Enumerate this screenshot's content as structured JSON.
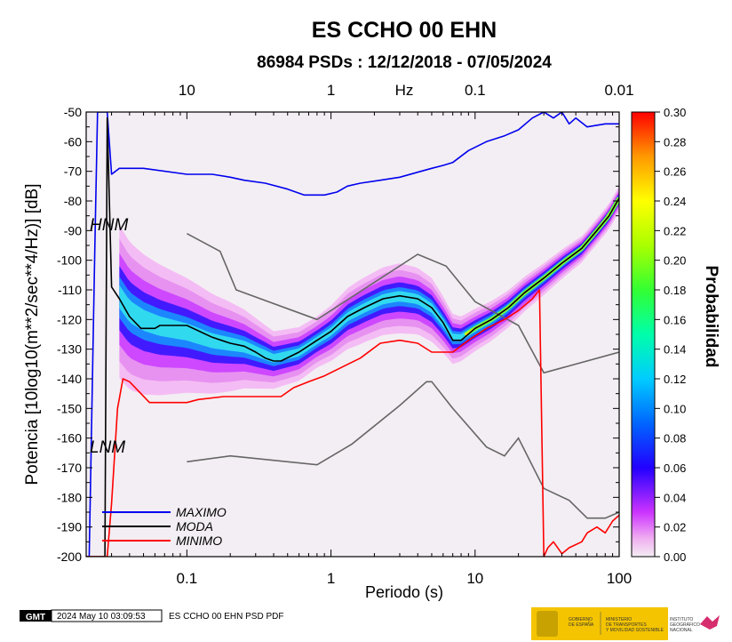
{
  "title": "ES CCHO 00 EHN",
  "subtitle": "86984 PSDs : 12/12/2018 - 07/05/2024",
  "footer": {
    "logo_text": "GMT",
    "timestamp": "2024 May 10 03:09:53",
    "caption": "ES CCHO 00 EHN PSD PDF",
    "gov_line1": "GOBIERNO",
    "gov_line2": "DE ESPAÑA",
    "ministry_line1": "MINISTERIO",
    "ministry_line2": "DE TRANSPORTES",
    "ministry_line3": "Y MOVILIDAD SOSTENIBLE",
    "ign_line1": "INSTITUTO",
    "ign_line2": "GEOGRÁFICO",
    "ign_line3": "NACIONAL"
  },
  "colors": {
    "maximo": "#0000ee",
    "moda": "#000000",
    "minimo": "#ff0000",
    "noise_model": "#666666",
    "background": "#f3eef3"
  },
  "chart_data": {
    "type": "heatmap",
    "title": "ES CCHO 00 EHN",
    "subtitle": "86984 PSDs : 12/12/2018 - 07/05/2024",
    "xlabel": "Periodo (s)",
    "ylabel": "Potencia [10log10(m**2/sec**4/Hz)] [dB]",
    "top_axis_label": "Hz",
    "x_scale": "log",
    "xlim": [
      0.02,
      100
    ],
    "ylim": [
      -200,
      -50
    ],
    "x_ticks": [
      {
        "v": 0.1,
        "label": "0.1"
      },
      {
        "v": 1,
        "label": "1"
      },
      {
        "v": 10,
        "label": "10"
      },
      {
        "v": 100,
        "label": "100"
      }
    ],
    "top_ticks": [
      {
        "v": 0.1,
        "label": "10"
      },
      {
        "v": 1,
        "label": "1"
      },
      {
        "v": 10,
        "label": "0.1"
      },
      {
        "v": 100,
        "label": "0.01"
      }
    ],
    "y_ticks": [
      -50,
      -60,
      -70,
      -80,
      -90,
      -100,
      -110,
      -120,
      -130,
      -140,
      -150,
      -160,
      -170,
      -180,
      -190,
      -200
    ],
    "colorbar": {
      "label": "Probabilidad",
      "range": [
        0,
        0.3
      ],
      "ticks": [
        "0.30",
        "0.28",
        "0.26",
        "0.24",
        "0.22",
        "0.20",
        "0.18",
        "0.16",
        "0.14",
        "0.12",
        "0.10",
        "0.08",
        "0.06",
        "0.04",
        "0.02",
        "0.00"
      ]
    },
    "noise_models": {
      "hnm_label": "HNM",
      "lnm_label": "LNM",
      "hnm": [
        [
          0.1,
          -91
        ],
        [
          0.17,
          -97
        ],
        [
          0.22,
          -110
        ],
        [
          0.8,
          -120
        ],
        [
          4,
          -98
        ],
        [
          6.3,
          -102
        ],
        [
          10,
          -114
        ],
        [
          20,
          -122
        ],
        [
          30,
          -138
        ],
        [
          100,
          -131
        ]
      ],
      "lnm": [
        [
          0.1,
          -168
        ],
        [
          0.2,
          -166
        ],
        [
          0.8,
          -169
        ],
        [
          1.4,
          -162
        ],
        [
          3,
          -149
        ],
        [
          4.6,
          -141
        ],
        [
          5,
          -141
        ],
        [
          7,
          -150
        ],
        [
          12,
          -163
        ],
        [
          16,
          -166
        ],
        [
          20,
          -160
        ],
        [
          30,
          -177
        ],
        [
          45,
          -181
        ],
        [
          60,
          -187
        ],
        [
          80,
          -187
        ],
        [
          100,
          -185
        ]
      ]
    },
    "series": [
      {
        "name": "MAXIMO",
        "points": [
          [
            0.02,
            -200
          ],
          [
            0.021,
            -200
          ],
          [
            0.023,
            -95
          ],
          [
            0.024,
            -50
          ],
          [
            0.027,
            -50
          ],
          [
            0.028,
            -50
          ],
          [
            0.03,
            -71
          ],
          [
            0.034,
            -69
          ],
          [
            0.05,
            -69
          ],
          [
            0.1,
            -71
          ],
          [
            0.15,
            -71
          ],
          [
            0.2,
            -72
          ],
          [
            0.25,
            -73
          ],
          [
            0.35,
            -74
          ],
          [
            0.5,
            -76
          ],
          [
            0.65,
            -78
          ],
          [
            0.9,
            -78
          ],
          [
            1.1,
            -77
          ],
          [
            1.3,
            -75
          ],
          [
            1.6,
            -74
          ],
          [
            2.2,
            -73
          ],
          [
            3,
            -72
          ],
          [
            4.2,
            -70
          ],
          [
            5,
            -69
          ],
          [
            6,
            -68
          ],
          [
            7,
            -67
          ],
          [
            9,
            -63
          ],
          [
            12,
            -60
          ],
          [
            16,
            -58
          ],
          [
            20,
            -56
          ],
          [
            25,
            -52
          ],
          [
            30,
            -50
          ],
          [
            35,
            -52
          ],
          [
            40,
            -50
          ],
          [
            45,
            -54
          ],
          [
            50,
            -52
          ],
          [
            60,
            -55
          ],
          [
            80,
            -54
          ],
          [
            100,
            -54
          ]
        ]
      },
      {
        "name": "MODA",
        "points": [
          [
            0.02,
            -200
          ],
          [
            0.021,
            -200
          ],
          [
            0.022,
            -200
          ],
          [
            0.025,
            -200
          ],
          [
            0.027,
            -200
          ],
          [
            0.028,
            -52
          ],
          [
            0.03,
            -109
          ],
          [
            0.034,
            -113
          ],
          [
            0.04,
            -119
          ],
          [
            0.048,
            -123
          ],
          [
            0.06,
            -123
          ],
          [
            0.065,
            -122
          ],
          [
            0.1,
            -122
          ],
          [
            0.15,
            -126
          ],
          [
            0.2,
            -128
          ],
          [
            0.25,
            -129
          ],
          [
            0.3,
            -131
          ],
          [
            0.35,
            -133
          ],
          [
            0.4,
            -134
          ],
          [
            0.45,
            -134
          ],
          [
            0.6,
            -131
          ],
          [
            0.8,
            -127
          ],
          [
            1.0,
            -124
          ],
          [
            1.3,
            -119
          ],
          [
            1.7,
            -116
          ],
          [
            2.3,
            -113
          ],
          [
            3,
            -112
          ],
          [
            4,
            -113
          ],
          [
            5,
            -116
          ],
          [
            6,
            -121
          ],
          [
            7,
            -127
          ],
          [
            8,
            -127
          ],
          [
            10,
            -123
          ],
          [
            13,
            -120
          ],
          [
            17,
            -116
          ],
          [
            22,
            -111
          ],
          [
            30,
            -106
          ],
          [
            40,
            -101
          ],
          [
            55,
            -96
          ],
          [
            70,
            -90
          ],
          [
            85,
            -85
          ],
          [
            100,
            -79
          ]
        ]
      },
      {
        "name": "MINIMO",
        "points": [
          [
            0.02,
            -200
          ],
          [
            0.023,
            -200
          ],
          [
            0.025,
            -200
          ],
          [
            0.028,
            -200
          ],
          [
            0.03,
            -182
          ],
          [
            0.033,
            -150
          ],
          [
            0.036,
            -140
          ],
          [
            0.04,
            -141
          ],
          [
            0.048,
            -145
          ],
          [
            0.055,
            -148
          ],
          [
            0.1,
            -148
          ],
          [
            0.12,
            -147
          ],
          [
            0.18,
            -146
          ],
          [
            0.3,
            -146
          ],
          [
            0.45,
            -146
          ],
          [
            0.55,
            -143
          ],
          [
            0.7,
            -141
          ],
          [
            0.9,
            -139
          ],
          [
            1.2,
            -136
          ],
          [
            1.6,
            -133
          ],
          [
            2.2,
            -128
          ],
          [
            3,
            -127
          ],
          [
            4,
            -128
          ],
          [
            5,
            -131
          ],
          [
            7,
            -131
          ],
          [
            9,
            -127
          ],
          [
            12,
            -123
          ],
          [
            16,
            -120
          ],
          [
            20,
            -117
          ],
          [
            25,
            -113
          ],
          [
            28,
            -110
          ],
          [
            30,
            -200
          ],
          [
            32,
            -197
          ],
          [
            35,
            -195
          ],
          [
            40,
            -199
          ],
          [
            45,
            -197
          ],
          [
            55,
            -195
          ],
          [
            60,
            -192
          ],
          [
            70,
            -190
          ],
          [
            80,
            -192
          ],
          [
            90,
            -188
          ],
          [
            100,
            -186
          ]
        ]
      }
    ],
    "density_ridge": [
      [
        0.034,
        -112
      ],
      [
        0.04,
        -117
      ],
      [
        0.05,
        -120
      ],
      [
        0.065,
        -122
      ],
      [
        0.1,
        -124
      ],
      [
        0.15,
        -127
      ],
      [
        0.25,
        -129
      ],
      [
        0.4,
        -133
      ],
      [
        0.6,
        -131
      ],
      [
        0.8,
        -127
      ],
      [
        1.0,
        -124
      ],
      [
        1.3,
        -119
      ],
      [
        1.7,
        -116
      ],
      [
        2.3,
        -113
      ],
      [
        3,
        -112
      ],
      [
        4,
        -113
      ],
      [
        5,
        -116
      ],
      [
        6,
        -121
      ],
      [
        7,
        -126
      ],
      [
        8,
        -126
      ],
      [
        10,
        -123
      ],
      [
        13,
        -120
      ],
      [
        17,
        -116
      ],
      [
        22,
        -111
      ],
      [
        30,
        -106
      ],
      [
        40,
        -101
      ],
      [
        55,
        -96
      ],
      [
        70,
        -90
      ],
      [
        85,
        -85
      ],
      [
        100,
        -79
      ]
    ],
    "density_spread": [
      [
        0.034,
        24
      ],
      [
        0.05,
        22
      ],
      [
        0.1,
        18
      ],
      [
        0.2,
        14
      ],
      [
        0.4,
        9
      ],
      [
        0.8,
        8
      ],
      [
        1.5,
        10
      ],
      [
        3,
        11
      ],
      [
        5,
        10
      ],
      [
        8,
        7
      ],
      [
        15,
        6
      ],
      [
        30,
        5
      ],
      [
        60,
        4
      ],
      [
        100,
        4
      ]
    ]
  }
}
